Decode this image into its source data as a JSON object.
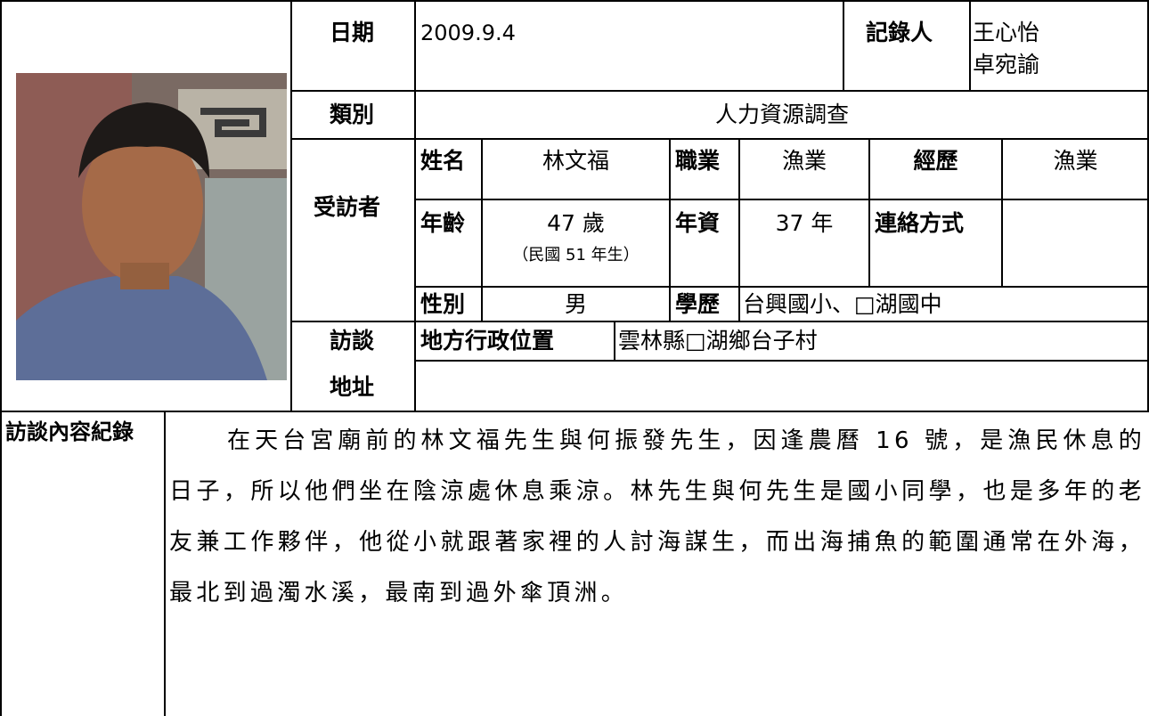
{
  "record": {
    "date_label": "日期",
    "date": "2009.9.4",
    "recorder_label": "記錄人",
    "recorders": [
      "王心怡",
      "卓宛諭"
    ],
    "category_label": "類別",
    "category": "人力資源調查",
    "interviewee_label": "受訪者",
    "interviewee": {
      "name_label": "姓名",
      "name": "林文福",
      "occupation_label": "職業",
      "occupation": "漁業",
      "experience_label": "經歷",
      "experience": "漁業",
      "age_label": "年齡",
      "age": "47 歲",
      "birth": "（民國 51 年生）",
      "seniority_label": "年資",
      "seniority": "37 年",
      "contact_label": "連絡方式",
      "gender_label": "性別",
      "gender": "男",
      "education_label": "學歷",
      "education": "台興國小、□湖國中"
    },
    "address_label": [
      "訪談",
      "地址"
    ],
    "district_label": "地方行政位置",
    "district": "雲林縣□湖鄉台子村",
    "content_label": "訪談內容紀錄",
    "content": "在天台宮廟前的林文福先生與何振發先生，因逢農曆 16 號，是漁民休息的日子，所以他們坐在陰涼處休息乘涼。林先生與何先生是國小同學，也是多年的老友兼工作夥伴，他從小就跟著家裡的人討海謀生，而出海捕魚的範圍通常在外海，最北到過濁水溪，最南到過外傘頂洲。"
  }
}
